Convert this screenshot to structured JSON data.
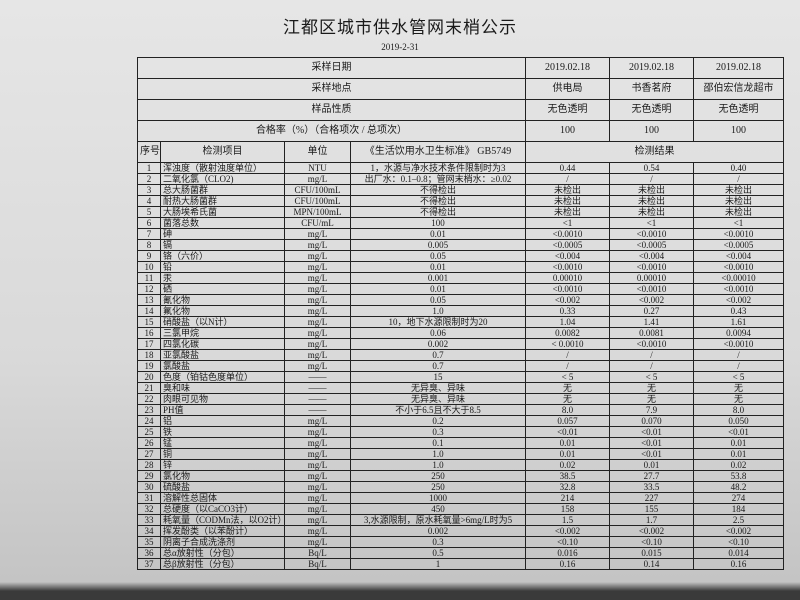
{
  "title": "江都区城市供水管网末梢公示",
  "date": "2019-2-31",
  "meta": {
    "sampling_date_label": "采样日期",
    "sampling_dates": [
      "2019.02.18",
      "2019.02.18",
      "2019.02.18"
    ],
    "sampling_site_label": "采样地点",
    "sampling_sites": [
      "供电局",
      "书香茗府",
      "邵伯宏信龙超市"
    ],
    "sample_nature_label": "样品性质",
    "sample_natures": [
      "无色透明",
      "无色透明",
      "无色透明"
    ],
    "pass_rate_label": "合格率（%）（合格项次 / 总项次）",
    "pass_rates": [
      "100",
      "100",
      "100"
    ]
  },
  "columns": {
    "seq": "序号",
    "item": "检测项目",
    "unit": "单位",
    "standard": "《生活饮用水卫生标准》 GB5749",
    "results": "检测结果"
  },
  "rows": [
    [
      "1",
      "浑浊度（散射浊度单位）",
      "NTU",
      "1，水源与净水技术条件限制时为3",
      "0.44",
      "0.54",
      "0.40"
    ],
    [
      "2",
      "二氧化氯（CLO2)",
      "mg/L",
      "出厂水：0.1–0.8；管网末梢水：≥0.02",
      "/",
      "/",
      "/"
    ],
    [
      "3",
      "总大肠菌群",
      "CFU/100mL",
      "不得检出",
      "未检出",
      "未检出",
      "未检出"
    ],
    [
      "4",
      "耐热大肠菌群",
      "CFU/100mL",
      "不得检出",
      "未检出",
      "未检出",
      "未检出"
    ],
    [
      "5",
      "大肠埃希氏菌",
      "MPN/100mL",
      "不得检出",
      "未检出",
      "未检出",
      "未检出"
    ],
    [
      "6",
      "菌落总数",
      "CFU/mL",
      "100",
      "<1",
      "<1",
      "<1"
    ],
    [
      "7",
      "砷",
      "mg/L",
      "0.01",
      "<0.0010",
      "<0.0010",
      "<0.0010"
    ],
    [
      "8",
      "镉",
      "mg/L",
      "0.005",
      "<0.0005",
      "<0.0005",
      "<0.0005"
    ],
    [
      "9",
      "铬（六价）",
      "mg/L",
      "0.05",
      "<0.004",
      "<0.004",
      "<0.004"
    ],
    [
      "10",
      "铅",
      "mg/L",
      "0.01",
      "<0.0010",
      "<0.0010",
      "<0.0010"
    ],
    [
      "11",
      "汞",
      "mg/L",
      "0.001",
      "0.00010",
      "0.00010",
      "<0.00010"
    ],
    [
      "12",
      "硒",
      "mg/L",
      "0.01",
      "<0.0010",
      "<0.0010",
      "<0.0010"
    ],
    [
      "13",
      "氰化物",
      "mg/L",
      "0.05",
      "<0.002",
      "<0.002",
      "<0.002"
    ],
    [
      "14",
      "氟化物",
      "mg/L",
      "1.0",
      "0.33",
      "0.27",
      "0.43"
    ],
    [
      "15",
      "硝酸盐（以N计）",
      "mg/L",
      "10，地下水源限制时为20",
      "1.04",
      "1.41",
      "1.61"
    ],
    [
      "16",
      "三氯甲烷",
      "mg/L",
      "0.06",
      "0.0082",
      "0.0081",
      "0.0094"
    ],
    [
      "17",
      "四氯化碳",
      "mg/L",
      "0.002",
      "< 0.0010",
      "<0.0010",
      "<0.0010"
    ],
    [
      "18",
      "亚氯酸盐",
      "mg/L",
      "0.7",
      "/",
      "/",
      "/"
    ],
    [
      "19",
      "氯酸盐",
      "mg/L",
      "0.7",
      "/",
      "/",
      "/"
    ],
    [
      "20",
      "色度（铂钴色度单位）",
      "——",
      "15",
      "< 5",
      "< 5",
      "< 5"
    ],
    [
      "21",
      "臭和味",
      "——",
      "无异臭、异味",
      "无",
      "无",
      "无"
    ],
    [
      "22",
      "肉眼可见物",
      "——",
      "无异臭、异味",
      "无",
      "无",
      "无"
    ],
    [
      "23",
      "PH值",
      "——",
      "不小于6.5且不大于8.5",
      "8.0",
      "7.9",
      "8.0"
    ],
    [
      "24",
      "铝",
      "mg/L",
      "0.2",
      "0.057",
      "0.070",
      "0.050"
    ],
    [
      "25",
      "铁",
      "mg/L",
      "0.3",
      "<0.01",
      "<0.01",
      "<0.01"
    ],
    [
      "26",
      "锰",
      "mg/L",
      "0.1",
      "0.01",
      "<0.01",
      "0.01"
    ],
    [
      "27",
      "铜",
      "mg/L",
      "1.0",
      "0.01",
      "<0.01",
      "0.01"
    ],
    [
      "28",
      "锌",
      "mg/L",
      "1.0",
      "0.02",
      "0.01",
      "0.02"
    ],
    [
      "29",
      "氯化物",
      "mg/L",
      "250",
      "38.5",
      "27.7",
      "53.8"
    ],
    [
      "30",
      "硫酸盐",
      "mg/L",
      "250",
      "32.8",
      "33.5",
      "48.2"
    ],
    [
      "31",
      "溶解性总固体",
      "mg/L",
      "1000",
      "214",
      "227",
      "274"
    ],
    [
      "32",
      "总硬度（以CaCO3计）",
      "mg/L",
      "450",
      "158",
      "155",
      "184"
    ],
    [
      "33",
      "耗氧量（CODMn法，以O2计）",
      "mg/L",
      "3,水源限制，原水耗氧量>6mg/L时为5",
      "1.5",
      "1.7",
      "2.5"
    ],
    [
      "34",
      "挥发酚类（以苯酚计）",
      "mg/L",
      "0.002",
      "<0.002",
      "<0.002",
      "<0.002"
    ],
    [
      "35",
      "阴离子合成洗涤剂",
      "mg/L",
      "0.3",
      "<0.10",
      "<0.10",
      "<0.10"
    ],
    [
      "36",
      "总α放射性（分包）",
      "Bq/L",
      "0.5",
      "0.016",
      "0.015",
      "0.014"
    ],
    [
      "37",
      "总β放射性（分包）",
      "Bq/L",
      "1",
      "0.16",
      "0.14",
      "0.16"
    ]
  ]
}
